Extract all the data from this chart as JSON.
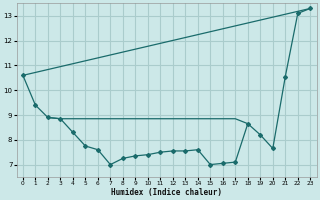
{
  "xlabel": "Humidex (Indice chaleur)",
  "bg_color": "#cce8e8",
  "grid_color": "#aacccc",
  "line_color": "#1a6b6b",
  "xlim": [
    -0.5,
    23.5
  ],
  "ylim": [
    6.5,
    13.5
  ],
  "xticks": [
    0,
    1,
    2,
    3,
    4,
    5,
    6,
    7,
    8,
    9,
    10,
    11,
    12,
    13,
    14,
    15,
    16,
    17,
    18,
    19,
    20,
    21,
    22,
    23
  ],
  "yticks": [
    7,
    8,
    9,
    10,
    11,
    12,
    13
  ],
  "line1_x": [
    0,
    1,
    2,
    3,
    4,
    5,
    6,
    7,
    8,
    9,
    10,
    11,
    12,
    13,
    14,
    15,
    16,
    17,
    18,
    19,
    20,
    21,
    22,
    23
  ],
  "line1_y": [
    10.6,
    9.4,
    8.9,
    8.85,
    8.3,
    7.75,
    7.6,
    7.0,
    7.25,
    7.35,
    7.4,
    7.5,
    7.55,
    7.55,
    7.6,
    7.0,
    7.05,
    7.1,
    8.65,
    8.2,
    7.65,
    10.55,
    13.1,
    13.3
  ],
  "line2_x": [
    0,
    23
  ],
  "line2_y": [
    10.6,
    13.3
  ],
  "line3_x": [
    2,
    3,
    4,
    5,
    6,
    7,
    8,
    9,
    10,
    11,
    12,
    13,
    14,
    15,
    16,
    17,
    18
  ],
  "line3_y": [
    8.9,
    8.85,
    8.85,
    8.85,
    8.85,
    8.85,
    8.85,
    8.85,
    8.85,
    8.85,
    8.85,
    8.85,
    8.85,
    8.85,
    8.85,
    8.85,
    8.65
  ]
}
